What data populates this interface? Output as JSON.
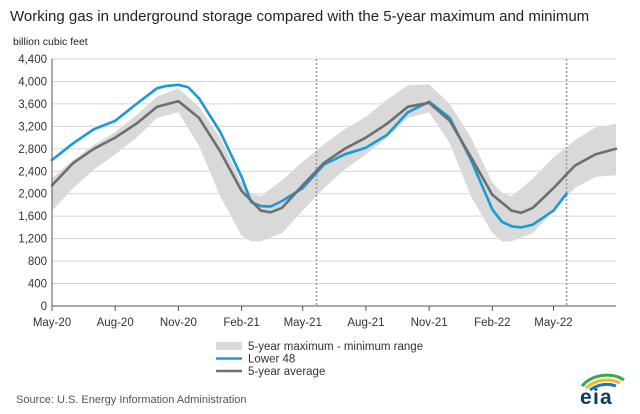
{
  "title": "Working gas in underground  storage compared with the 5-year maximum and minimum",
  "unit_label": "billion cubic feet",
  "source": "Source:  U.S. Energy Information Administration",
  "logo_text": "eia",
  "colors": {
    "range": "#d9d9d9",
    "lower48": "#1a9ad6",
    "average": "#6d6e71",
    "grid": "#d6d6d6",
    "axis": "#555555",
    "dashed_line": "#999999"
  },
  "chart_data": {
    "type": "area",
    "title": "Working gas in underground  storage compared with the 5-year maximum and minimum",
    "ylabel": "billion cubic feet",
    "ylim": [
      0,
      4400
    ],
    "yticks": [
      0,
      400,
      800,
      1200,
      1600,
      2000,
      2400,
      2800,
      3200,
      3600,
      4000,
      4400
    ],
    "ytick_labels": [
      "0",
      "400",
      "800",
      "1,200",
      "1,600",
      "2,000",
      "2,400",
      "2,800",
      "3,200",
      "3,600",
      "4,000",
      "4,400"
    ],
    "xlim": [
      "2020-05-01",
      "2022-07-31"
    ],
    "xticks": [
      "2020-05-01",
      "2020-08-01",
      "2020-11-01",
      "2021-02-01",
      "2021-05-01",
      "2021-08-01",
      "2021-11-01",
      "2022-02-01",
      "2022-05-01"
    ],
    "xtick_labels": [
      "May-20",
      "Aug-20",
      "Nov-20",
      "Feb-21",
      "May-21",
      "Aug-21",
      "Nov-21",
      "Feb-22",
      "May-22"
    ],
    "grid": "horizontal",
    "legend_position": "bottom-center",
    "vertical_markers": [
      "2021-05-21",
      "2022-05-20"
    ],
    "series": [
      {
        "name": "5-year maximum - minimum range",
        "kind": "band",
        "points": [
          {
            "x": "2020-05-01",
            "low": 1700,
            "high": 2280
          },
          {
            "x": "2020-06-01",
            "low": 2100,
            "high": 2600
          },
          {
            "x": "2020-07-01",
            "low": 2430,
            "high": 2870
          },
          {
            "x": "2020-08-01",
            "low": 2700,
            "high": 3100
          },
          {
            "x": "2020-09-01",
            "low": 3000,
            "high": 3400
          },
          {
            "x": "2020-10-01",
            "low": 3350,
            "high": 3730
          },
          {
            "x": "2020-11-01",
            "low": 3450,
            "high": 3880
          },
          {
            "x": "2020-12-01",
            "low": 2850,
            "high": 3550
          },
          {
            "x": "2021-01-01",
            "low": 1950,
            "high": 3000
          },
          {
            "x": "2021-02-01",
            "low": 1250,
            "high": 2200
          },
          {
            "x": "2021-02-15",
            "low": 1150,
            "high": 2000
          },
          {
            "x": "2021-03-01",
            "low": 1150,
            "high": 1960
          },
          {
            "x": "2021-04-01",
            "low": 1300,
            "high": 2240
          },
          {
            "x": "2021-05-01",
            "low": 1700,
            "high": 2570
          },
          {
            "x": "2021-06-01",
            "low": 2100,
            "high": 2880
          },
          {
            "x": "2021-07-01",
            "low": 2430,
            "high": 3150
          },
          {
            "x": "2021-08-01",
            "low": 2700,
            "high": 3370
          },
          {
            "x": "2021-09-01",
            "low": 3000,
            "high": 3680
          },
          {
            "x": "2021-10-01",
            "low": 3350,
            "high": 3930
          },
          {
            "x": "2021-11-01",
            "low": 3450,
            "high": 3950
          },
          {
            "x": "2021-12-01",
            "low": 2900,
            "high": 3600
          },
          {
            "x": "2022-01-01",
            "low": 1950,
            "high": 3000
          },
          {
            "x": "2022-02-01",
            "low": 1300,
            "high": 2200
          },
          {
            "x": "2022-02-15",
            "low": 1150,
            "high": 2020
          },
          {
            "x": "2022-03-01",
            "low": 1150,
            "high": 1950
          },
          {
            "x": "2022-04-01",
            "low": 1300,
            "high": 2270
          },
          {
            "x": "2022-05-01",
            "low": 1700,
            "high": 2650
          },
          {
            "x": "2022-06-01",
            "low": 2100,
            "high": 2950
          },
          {
            "x": "2022-07-01",
            "low": 2300,
            "high": 3180
          },
          {
            "x": "2022-07-31",
            "low": 2330,
            "high": 3250
          }
        ]
      },
      {
        "name": "Lower 48",
        "kind": "line",
        "points": [
          {
            "x": "2020-05-01",
            "y": 2600
          },
          {
            "x": "2020-06-01",
            "y": 2900
          },
          {
            "x": "2020-07-01",
            "y": 3150
          },
          {
            "x": "2020-08-01",
            "y": 3300
          },
          {
            "x": "2020-09-01",
            "y": 3600
          },
          {
            "x": "2020-10-01",
            "y": 3880
          },
          {
            "x": "2020-10-15",
            "y": 3920
          },
          {
            "x": "2020-11-01",
            "y": 3940
          },
          {
            "x": "2020-11-15",
            "y": 3900
          },
          {
            "x": "2020-12-01",
            "y": 3700
          },
          {
            "x": "2021-01-01",
            "y": 3100
          },
          {
            "x": "2021-02-01",
            "y": 2300
          },
          {
            "x": "2021-02-15",
            "y": 1850
          },
          {
            "x": "2021-03-01",
            "y": 1780
          },
          {
            "x": "2021-03-15",
            "y": 1770
          },
          {
            "x": "2021-04-01",
            "y": 1870
          },
          {
            "x": "2021-05-01",
            "y": 2100
          },
          {
            "x": "2021-06-01",
            "y": 2520
          },
          {
            "x": "2021-07-01",
            "y": 2700
          },
          {
            "x": "2021-08-01",
            "y": 2820
          },
          {
            "x": "2021-09-01",
            "y": 3050
          },
          {
            "x": "2021-10-01",
            "y": 3450
          },
          {
            "x": "2021-11-01",
            "y": 3640
          },
          {
            "x": "2021-12-01",
            "y": 3350
          },
          {
            "x": "2022-01-01",
            "y": 2600
          },
          {
            "x": "2022-02-01",
            "y": 1720
          },
          {
            "x": "2022-02-15",
            "y": 1500
          },
          {
            "x": "2022-03-01",
            "y": 1420
          },
          {
            "x": "2022-03-15",
            "y": 1400
          },
          {
            "x": "2022-04-01",
            "y": 1450
          },
          {
            "x": "2022-05-01",
            "y": 1700
          },
          {
            "x": "2022-05-20",
            "y": 2000
          }
        ]
      },
      {
        "name": "5-year average",
        "kind": "line",
        "points": [
          {
            "x": "2020-05-01",
            "y": 2150
          },
          {
            "x": "2020-06-01",
            "y": 2550
          },
          {
            "x": "2020-07-01",
            "y": 2800
          },
          {
            "x": "2020-08-01",
            "y": 3000
          },
          {
            "x": "2020-09-01",
            "y": 3250
          },
          {
            "x": "2020-10-01",
            "y": 3550
          },
          {
            "x": "2020-11-01",
            "y": 3650
          },
          {
            "x": "2020-12-01",
            "y": 3350
          },
          {
            "x": "2021-01-01",
            "y": 2750
          },
          {
            "x": "2021-02-01",
            "y": 2050
          },
          {
            "x": "2021-03-01",
            "y": 1700
          },
          {
            "x": "2021-03-15",
            "y": 1670
          },
          {
            "x": "2021-04-01",
            "y": 1750
          },
          {
            "x": "2021-05-01",
            "y": 2150
          },
          {
            "x": "2021-06-01",
            "y": 2550
          },
          {
            "x": "2021-07-01",
            "y": 2800
          },
          {
            "x": "2021-08-01",
            "y": 3000
          },
          {
            "x": "2021-09-01",
            "y": 3250
          },
          {
            "x": "2021-10-01",
            "y": 3550
          },
          {
            "x": "2021-11-01",
            "y": 3620
          },
          {
            "x": "2021-12-01",
            "y": 3300
          },
          {
            "x": "2022-01-01",
            "y": 2650
          },
          {
            "x": "2022-02-01",
            "y": 1980
          },
          {
            "x": "2022-03-01",
            "y": 1700
          },
          {
            "x": "2022-03-15",
            "y": 1660
          },
          {
            "x": "2022-04-01",
            "y": 1750
          },
          {
            "x": "2022-05-01",
            "y": 2100
          },
          {
            "x": "2022-06-01",
            "y": 2500
          },
          {
            "x": "2022-07-01",
            "y": 2700
          },
          {
            "x": "2022-07-31",
            "y": 2800
          }
        ]
      }
    ]
  }
}
